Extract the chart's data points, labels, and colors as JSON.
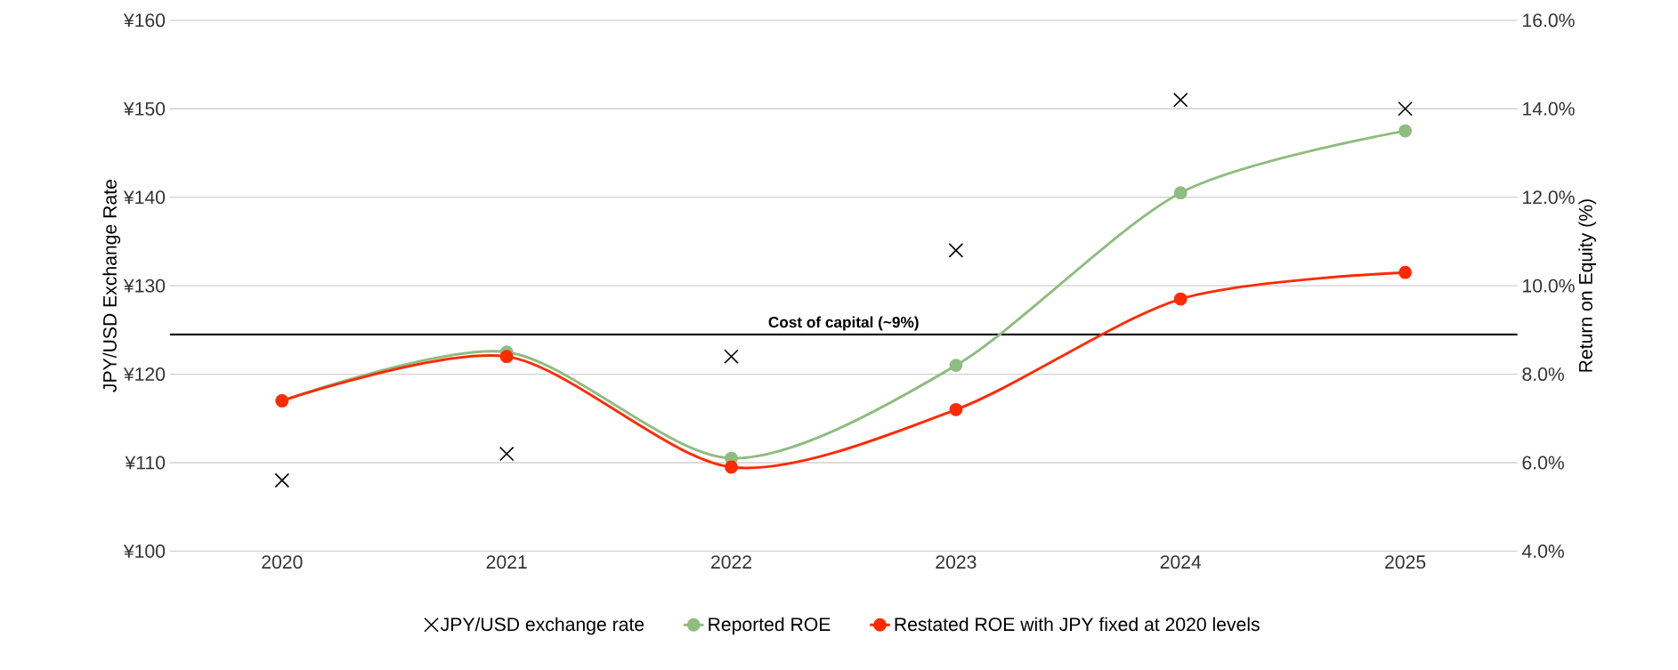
{
  "chart_data": {
    "type": "line",
    "categories": [
      "2020",
      "2021",
      "2022",
      "2023",
      "2024",
      "2025"
    ],
    "ylabel": "JPY/USD Exchange Rate",
    "y2label": "Return on Equity (%)",
    "ylim": [
      100,
      160
    ],
    "yticks": [
      {
        "value": 100,
        "label": "¥100"
      },
      {
        "value": 110,
        "label": "¥110"
      },
      {
        "value": 120,
        "label": "¥120"
      },
      {
        "value": 130,
        "label": "¥130"
      },
      {
        "value": 140,
        "label": "¥140"
      },
      {
        "value": 150,
        "label": "¥150"
      },
      {
        "value": 160,
        "label": "¥160"
      }
    ],
    "y2lim": [
      4,
      16
    ],
    "y2ticks": [
      {
        "value": 4,
        "label": "4.0%"
      },
      {
        "value": 6,
        "label": "6.0%"
      },
      {
        "value": 8,
        "label": "8.0%"
      },
      {
        "value": 10,
        "label": "10.0%"
      },
      {
        "value": 12,
        "label": "12.0%"
      },
      {
        "value": 14,
        "label": "14.0%"
      },
      {
        "value": 16,
        "label": "16.0%"
      }
    ],
    "grid": "y",
    "legend": "bottom",
    "series": [
      {
        "name": "JPY/USD exchange rate",
        "type": "scatter",
        "marker": "cross",
        "color": "#000000",
        "values": [
          108,
          111,
          122,
          134,
          151,
          150
        ]
      },
      {
        "name": "Reported ROE",
        "axis": "y2",
        "marker": "circle",
        "color": "#8fbc7f",
        "values": [
          7.4,
          8.5,
          6.1,
          8.2,
          12.1,
          13.5
        ]
      },
      {
        "name": "Restated ROE with JPY fixed at 2020 levels",
        "axis": "y2",
        "marker": "circle",
        "color": "#ff2a00",
        "values": [
          7.4,
          8.4,
          5.9,
          7.2,
          9.7,
          10.3
        ]
      }
    ],
    "ref_lines": [
      {
        "axis": "y2",
        "value": 8.9,
        "label": "Cost of capital (~9%)",
        "color": "#000000"
      }
    ]
  }
}
